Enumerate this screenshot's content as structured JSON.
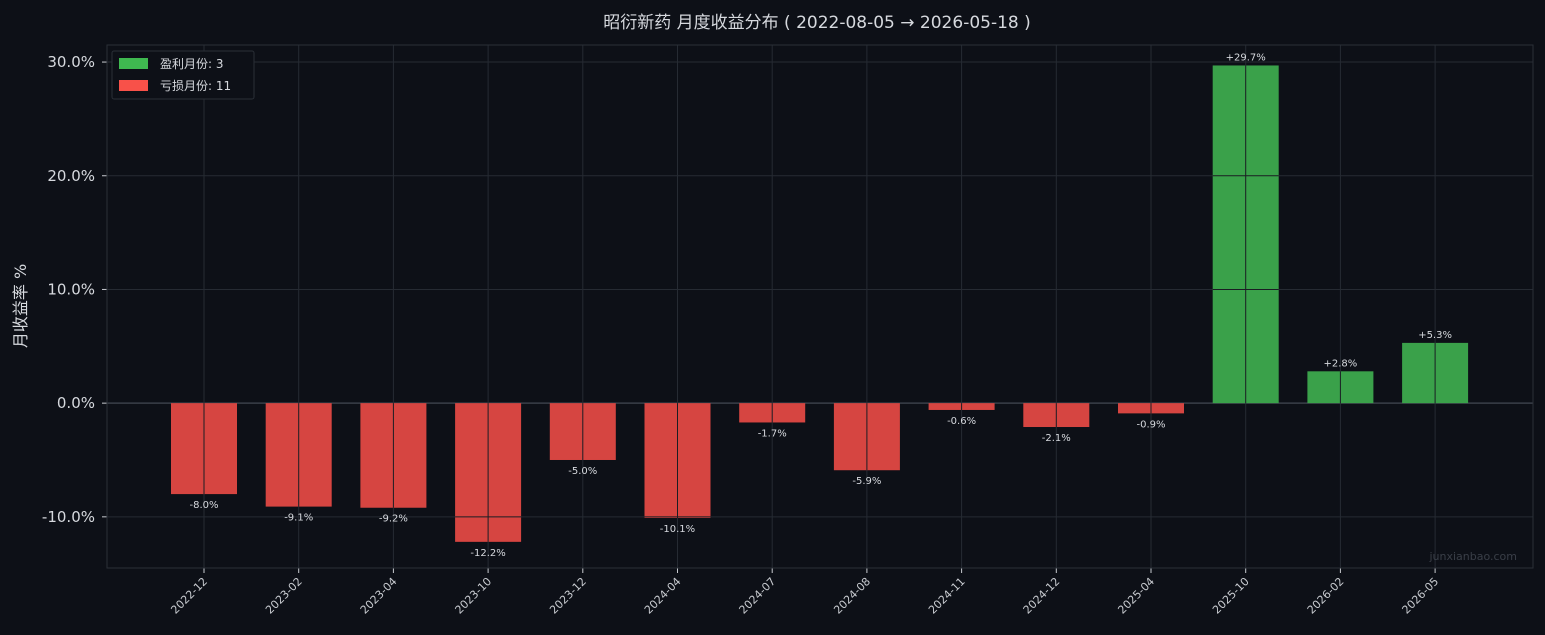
{
  "chart_data": {
    "type": "bar",
    "title": "昭衍新药 月度收益分布 ( 2022-08-05 → 2026-05-18 )",
    "xlabel": "",
    "ylabel": "月收益率 %",
    "categories": [
      "2022-12",
      "2023-02",
      "2023-04",
      "2023-10",
      "2023-12",
      "2024-04",
      "2024-07",
      "2024-08",
      "2024-11",
      "2024-12",
      "2025-04",
      "2025-10",
      "2026-02",
      "2026-05"
    ],
    "values": [
      -8.0,
      -9.1,
      -9.2,
      -12.2,
      -5.0,
      -10.1,
      -1.7,
      -5.9,
      -0.6,
      -2.1,
      -0.9,
      29.7,
      2.8,
      5.3
    ],
    "data_labels": [
      "-8.0%",
      "-9.1%",
      "-9.2%",
      "-12.2%",
      "-5.0%",
      "-10.1%",
      "-1.7%",
      "-5.9%",
      "-0.6%",
      "-2.1%",
      "-0.9%",
      "+29.7%",
      "+2.8%",
      "+5.3%"
    ],
    "ylim": [
      -14.5,
      31.5
    ],
    "yticks": [
      -10,
      0,
      10,
      20,
      30
    ],
    "ytick_labels": [
      "-10.0%",
      "0.0%",
      "10.0%",
      "20.0%",
      "30.0%"
    ],
    "grid": true,
    "legend": {
      "placement": "top-left",
      "entries": [
        {
          "label": "盈利月份: 3",
          "color": "#3fb950"
        },
        {
          "label": "亏损月份: 11",
          "color": "#f85149"
        }
      ]
    },
    "colors": {
      "positive": "#3aa14a",
      "negative": "#d64541",
      "background": "#0d1017",
      "grid": "#262b33",
      "axis": "#3a3f48"
    },
    "watermark": "junxianbao.com"
  }
}
